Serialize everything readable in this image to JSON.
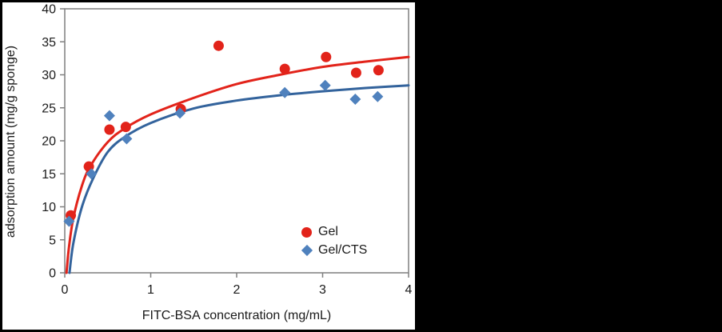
{
  "chart_data": {
    "type": "scatter",
    "title": "",
    "xlabel": "FITC-BSA concentration (mg/mL)",
    "ylabel": "adsorption amount (mg/g sponge)",
    "xlim": [
      0,
      4
    ],
    "ylim": [
      0,
      40
    ],
    "xticks": [
      0,
      1,
      2,
      3,
      4
    ],
    "yticks": [
      0,
      5,
      10,
      15,
      20,
      25,
      30,
      35,
      40
    ],
    "grid": false,
    "legend_position": "inside lower right",
    "axis_color": "#7f7f7f",
    "text_color": "#1a1a1a",
    "panel_background": "#ffffff",
    "frame_background": "#000000",
    "series": [
      {
        "name": "Gel",
        "marker": "circle",
        "color": "#e2231a",
        "line_color": "#e2231a",
        "points": [
          [
            0.07,
            8.7
          ],
          [
            0.28,
            16.1
          ],
          [
            0.52,
            21.7
          ],
          [
            0.71,
            22.1
          ],
          [
            1.35,
            24.8
          ],
          [
            1.79,
            34.4
          ],
          [
            2.56,
            30.9
          ],
          [
            3.04,
            32.7
          ],
          [
            3.39,
            30.3
          ],
          [
            3.65,
            30.7
          ]
        ],
        "trend": [
          [
            0.02,
            0
          ],
          [
            0.05,
            4.0
          ],
          [
            0.1,
            8.3
          ],
          [
            0.2,
            13.2
          ],
          [
            0.3,
            16.2
          ],
          [
            0.5,
            19.8
          ],
          [
            0.7,
            21.9
          ],
          [
            1.0,
            24.0
          ],
          [
            1.5,
            26.5
          ],
          [
            2.0,
            28.6
          ],
          [
            2.5,
            30.0
          ],
          [
            3.0,
            31.2
          ],
          [
            3.5,
            32.0
          ],
          [
            4.0,
            32.7
          ]
        ]
      },
      {
        "name": "Gel/CTS",
        "marker": "diamond",
        "color": "#4f81bd",
        "line_color": "#33639c",
        "points": [
          [
            0.05,
            7.8
          ],
          [
            0.31,
            15.0
          ],
          [
            0.52,
            23.8
          ],
          [
            0.72,
            20.3
          ],
          [
            1.34,
            24.2
          ],
          [
            2.56,
            27.3
          ],
          [
            3.03,
            28.4
          ],
          [
            3.38,
            26.3
          ],
          [
            3.64,
            26.7
          ]
        ],
        "trend": [
          [
            0.055,
            0
          ],
          [
            0.1,
            4.5
          ],
          [
            0.2,
            10.0
          ],
          [
            0.33,
            14.3
          ],
          [
            0.5,
            18.3
          ],
          [
            0.7,
            20.6
          ],
          [
            1.0,
            22.7
          ],
          [
            1.5,
            24.9
          ],
          [
            2.0,
            26.1
          ],
          [
            2.5,
            26.9
          ],
          [
            3.0,
            27.5
          ],
          [
            3.5,
            28.0
          ],
          [
            4.0,
            28.4
          ]
        ]
      }
    ]
  }
}
